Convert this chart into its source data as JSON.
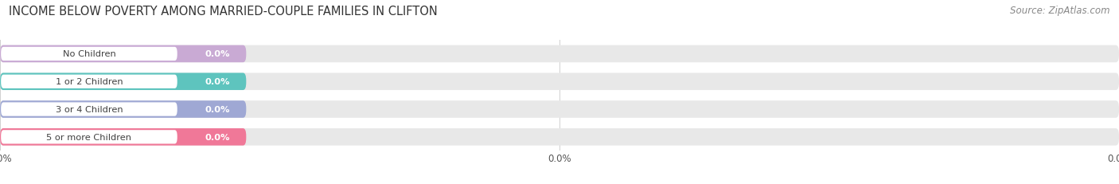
{
  "title": "INCOME BELOW POVERTY AMONG MARRIED-COUPLE FAMILIES IN CLIFTON",
  "source": "Source: ZipAtlas.com",
  "categories": [
    "No Children",
    "1 or 2 Children",
    "3 or 4 Children",
    "5 or more Children"
  ],
  "values": [
    0.0,
    0.0,
    0.0,
    0.0
  ],
  "bar_colors": [
    "#c9aad4",
    "#5ec4be",
    "#9fa8d4",
    "#f07898"
  ],
  "bar_bg_color": "#e8e8e8",
  "title_fontsize": 10.5,
  "source_fontsize": 8.5,
  "background_color": "#ffffff",
  "bar_height": 0.62,
  "xtick_label": "0.0%",
  "xtick_positions": [
    0,
    50,
    100
  ]
}
